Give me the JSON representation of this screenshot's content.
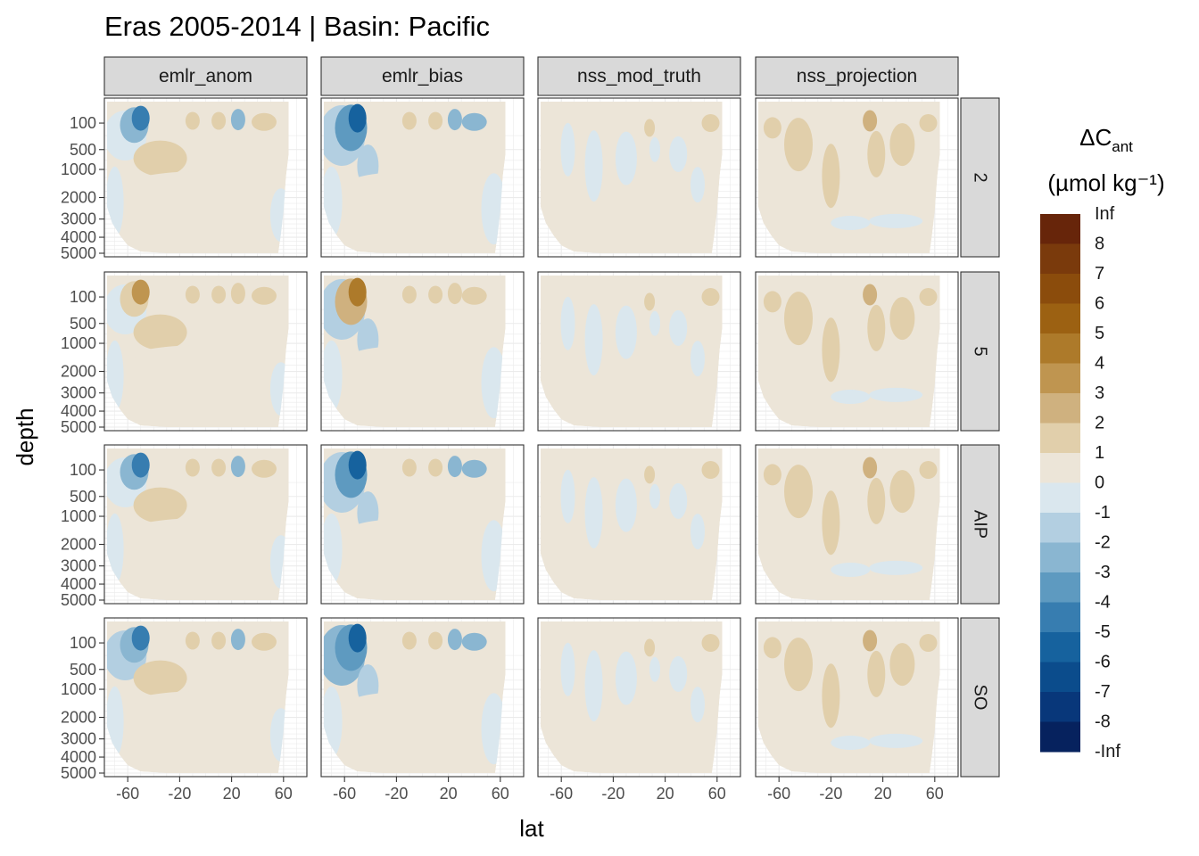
{
  "title": "Eras 2005-2014 | Basin: Pacific",
  "chart_data": {
    "type": "heatmap",
    "title": "Eras 2005-2014 | Basin: Pacific",
    "xlabel": "lat",
    "ylabel": "depth",
    "facet_columns": [
      "emlr_anom",
      "emlr_bias",
      "nss_mod_truth",
      "nss_projection"
    ],
    "facet_rows": [
      "2",
      "5",
      "AIP",
      "SO"
    ],
    "x_ticks": [
      "-60",
      "-20",
      "20",
      "60"
    ],
    "x_tick_values": [
      -60,
      -20,
      20,
      60
    ],
    "xlim": [
      -78,
      78
    ],
    "y_ticks": [
      "100",
      "500",
      "1000",
      "2000",
      "3000",
      "4000",
      "5000"
    ],
    "y_tick_values": [
      100,
      500,
      1000,
      2000,
      3000,
      4000,
      5000
    ],
    "ylim": [
      5000,
      0
    ],
    "y_scale": "sqrt (reversed)",
    "grid": true,
    "legend": {
      "position": "right",
      "title_main": "ΔC",
      "title_sub": "ant",
      "unit": "(µmol kg⁻¹)",
      "labels": [
        "Inf",
        "8",
        "7",
        "6",
        "5",
        "4",
        "3",
        "2",
        "1",
        "0",
        "-1",
        "-2",
        "-3",
        "-4",
        "-5",
        "-6",
        "-7",
        "-8",
        "-Inf"
      ],
      "colors": [
        "#67250a",
        "#7a3a0c",
        "#8b4c0c",
        "#9c6112",
        "#ad7a2a",
        "#bf9550",
        "#cfb17f",
        "#e1cfab",
        "#ece5d8",
        "#dae7ee",
        "#b3cfe1",
        "#8ab6d1",
        "#5e9ac0",
        "#377db0",
        "#16629e",
        "#0b4c8c",
        "#08377a",
        "#06225e"
      ]
    }
  }
}
